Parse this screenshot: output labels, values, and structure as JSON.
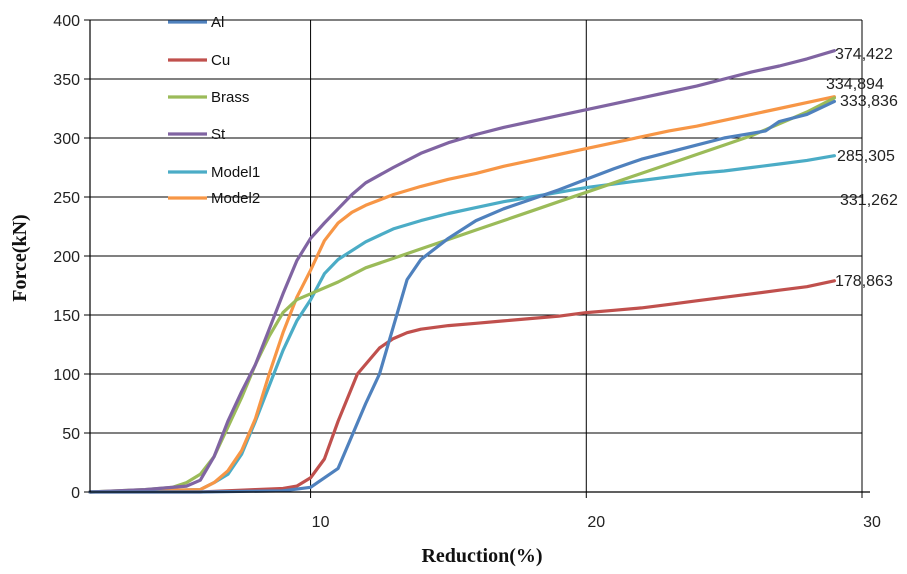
{
  "chart_data": {
    "type": "line",
    "title": "",
    "xlabel": "Reduction(%)",
    "ylabel": "Force(kN)",
    "xlim": [
      2,
      30
    ],
    "ylim": [
      0,
      400
    ],
    "xticks": [
      10,
      20,
      30
    ],
    "yticks": [
      0,
      50,
      100,
      150,
      200,
      250,
      300,
      350,
      400
    ],
    "grid": "vertical-and-horizontal",
    "legend": "top-left inside plot",
    "series": [
      {
        "name": "Al",
        "color": "#4F81BD",
        "end_label": "331,262",
        "x": [
          2,
          6,
          9,
          10,
          11,
          12,
          12.5,
          13,
          13.5,
          14,
          15,
          16,
          17,
          18,
          19,
          20,
          21,
          22,
          23,
          24,
          25,
          26,
          26.5,
          27,
          28,
          29
        ],
        "y": [
          0,
          0,
          1,
          4,
          20,
          75,
          100,
          140,
          180,
          197,
          215,
          230,
          240,
          248,
          256,
          265,
          274,
          282,
          288,
          294,
          300,
          304,
          306,
          314,
          320,
          331
        ]
      },
      {
        "name": "Cu",
        "color": "#C0504D",
        "end_label": "178,863",
        "x": [
          2,
          6,
          8,
          9,
          9.5,
          10,
          10.5,
          11,
          11.7,
          12.5,
          13,
          13.5,
          14,
          15,
          16,
          17,
          18,
          19,
          20,
          21,
          22,
          23,
          24,
          25,
          26,
          27,
          28,
          29
        ],
        "y": [
          0,
          0,
          2,
          3,
          5,
          12,
          28,
          60,
          100,
          122,
          130,
          135,
          138,
          141,
          143,
          145,
          147,
          149,
          152,
          154,
          156,
          159,
          162,
          165,
          168,
          171,
          174,
          179
        ]
      },
      {
        "name": "Brass",
        "color": "#9BBB59",
        "end_label": "333,836",
        "x": [
          2,
          4,
          5,
          5.5,
          6,
          6.5,
          7,
          7.5,
          8,
          8.5,
          9,
          9.5,
          10,
          11,
          12,
          13,
          14,
          15,
          16,
          17,
          18,
          19,
          20,
          21,
          22,
          23,
          24,
          25,
          26,
          27,
          28,
          29
        ],
        "y": [
          0,
          2,
          4,
          8,
          15,
          30,
          55,
          80,
          108,
          132,
          152,
          163,
          168,
          178,
          190,
          198,
          206,
          214,
          222,
          230,
          238,
          246,
          254,
          262,
          270,
          278,
          286,
          294,
          302,
          312,
          322,
          334
        ]
      },
      {
        "name": "St",
        "color": "#8064A2",
        "end_label": "374,422",
        "x": [
          2,
          4,
          5.5,
          6,
          6.5,
          7,
          7.5,
          8,
          8.5,
          9,
          9.5,
          10,
          10.5,
          11,
          11.5,
          12,
          13,
          14,
          15,
          16,
          17,
          18,
          19,
          20,
          21,
          22,
          23,
          24,
          25,
          26,
          27,
          28,
          29
        ],
        "y": [
          0,
          2,
          5,
          10,
          30,
          60,
          85,
          108,
          138,
          168,
          196,
          215,
          228,
          240,
          252,
          262,
          275,
          287,
          296,
          303,
          309,
          314,
          319,
          324,
          329,
          334,
          339,
          344,
          350,
          356,
          361,
          367,
          374
        ]
      },
      {
        "name": "Model1",
        "color": "#4BACC6",
        "end_label": "285,305",
        "x": [
          2,
          6,
          6.5,
          7,
          7.5,
          8,
          8.5,
          9,
          9.5,
          10,
          10.5,
          11,
          12,
          13,
          14,
          15,
          16,
          17,
          18,
          19,
          20,
          21,
          22,
          23,
          24,
          25,
          26,
          27,
          28,
          29
        ],
        "y": [
          0,
          2,
          8,
          15,
          32,
          60,
          90,
          120,
          145,
          163,
          185,
          197,
          212,
          223,
          230,
          236,
          241,
          246,
          250,
          254,
          258,
          261,
          264,
          267,
          270,
          272,
          275,
          278,
          281,
          285
        ]
      },
      {
        "name": "Model2",
        "color": "#F79646",
        "end_label": "334,894",
        "x": [
          2,
          6,
          6.5,
          7,
          7.5,
          8,
          8.5,
          9,
          9.5,
          10,
          10.5,
          11,
          11.5,
          12,
          13,
          14,
          15,
          16,
          17,
          18,
          19,
          20,
          21,
          22,
          23,
          24,
          25,
          26,
          27,
          28,
          29
        ],
        "y": [
          0,
          2,
          8,
          18,
          35,
          62,
          100,
          135,
          165,
          188,
          213,
          228,
          237,
          243,
          252,
          259,
          265,
          270,
          276,
          281,
          286,
          291,
          296,
          301,
          306,
          310,
          315,
          320,
          325,
          330,
          335
        ]
      }
    ]
  }
}
